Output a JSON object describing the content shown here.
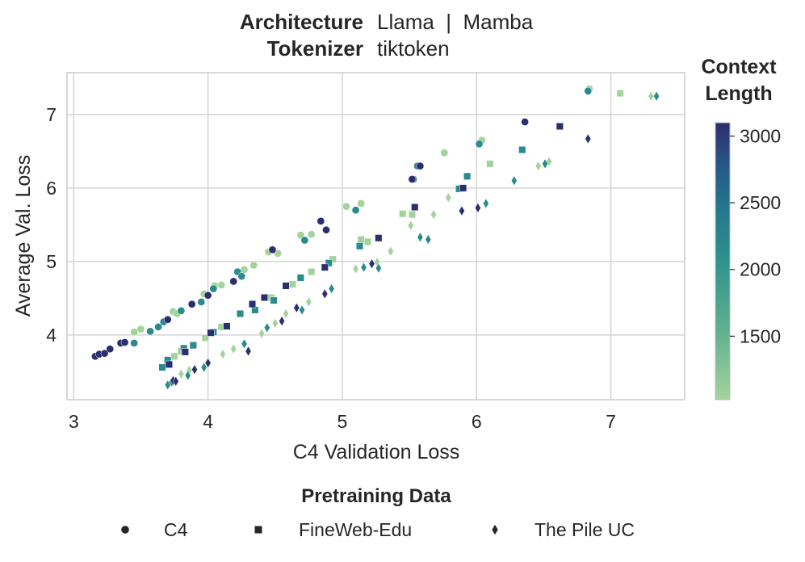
{
  "header": {
    "architecture_label": "Architecture",
    "architecture_value": "Llama  |  Mamba",
    "tokenizer_label": "Tokenizer",
    "tokenizer_value": "tiktoken"
  },
  "colorbar": {
    "title_line1": "Context",
    "title_line2": "Length",
    "range": [
      1024,
      3100
    ],
    "ticks": [
      "1500",
      "2000",
      "2500",
      "3000"
    ],
    "tick_values": [
      1500,
      2000,
      2500,
      3000
    ],
    "colors": {
      "low": "#a3d39c",
      "mid": "#2a8a8c",
      "high": "#2c2f6e"
    }
  },
  "legend": {
    "title": "Pretraining Data",
    "items": [
      {
        "label": "C4",
        "marker": "circle"
      },
      {
        "label": "FineWeb-Edu",
        "marker": "square"
      },
      {
        "label": "The Pile UC",
        "marker": "diamond"
      }
    ]
  },
  "chart_data": {
    "type": "scatter",
    "xlabel": "C4 Validation Loss",
    "ylabel": "Average Val. Loss",
    "xlim": [
      2.95,
      7.55
    ],
    "ylim": [
      3.12,
      7.57
    ],
    "xticks": [
      3,
      4,
      5,
      6,
      7
    ],
    "yticks": [
      4,
      5,
      6,
      7
    ],
    "grid": true,
    "color_by": "Context Length",
    "series": [
      {
        "name": "C4",
        "marker": "circle",
        "points": [
          [
            3.16,
            3.71,
            3072
          ],
          [
            3.19,
            3.74,
            3072
          ],
          [
            3.23,
            3.75,
            3072
          ],
          [
            3.27,
            3.81,
            3072
          ],
          [
            3.35,
            3.89,
            3072
          ],
          [
            3.38,
            3.9,
            3072
          ],
          [
            3.7,
            4.21,
            3072
          ],
          [
            3.88,
            4.42,
            3072
          ],
          [
            4.0,
            4.54,
            3072
          ],
          [
            4.19,
            4.73,
            3072
          ],
          [
            4.48,
            5.16,
            3072
          ],
          [
            4.84,
            5.55,
            3072
          ],
          [
            4.88,
            5.43,
            3072
          ],
          [
            5.52,
            6.12,
            3072
          ],
          [
            5.58,
            6.3,
            3072
          ],
          [
            6.36,
            6.9,
            3072
          ],
          [
            3.45,
            3.89,
            2048
          ],
          [
            3.57,
            4.05,
            2048
          ],
          [
            3.63,
            4.11,
            2048
          ],
          [
            3.67,
            4.18,
            2048
          ],
          [
            3.8,
            4.33,
            2048
          ],
          [
            3.95,
            4.45,
            2048
          ],
          [
            4.04,
            4.63,
            2048
          ],
          [
            4.22,
            4.86,
            2048
          ],
          [
            4.25,
            4.8,
            2048
          ],
          [
            4.72,
            5.29,
            2048
          ],
          [
            5.1,
            5.7,
            2048
          ],
          [
            5.53,
            6.12,
            2048
          ],
          [
            5.56,
            6.3,
            2048
          ],
          [
            6.02,
            6.6,
            2048
          ],
          [
            6.83,
            7.32,
            2048
          ],
          [
            3.45,
            4.04,
            1024
          ],
          [
            3.5,
            4.08,
            1024
          ],
          [
            3.74,
            4.32,
            1024
          ],
          [
            3.77,
            4.29,
            1024
          ],
          [
            3.97,
            4.56,
            1024
          ],
          [
            4.05,
            4.67,
            1024
          ],
          [
            4.1,
            4.68,
            1024
          ],
          [
            4.27,
            4.89,
            1024
          ],
          [
            4.34,
            4.95,
            1024
          ],
          [
            4.45,
            5.13,
            1024
          ],
          [
            4.52,
            5.11,
            1024
          ],
          [
            4.69,
            5.36,
            1024
          ],
          [
            4.77,
            5.37,
            1024
          ],
          [
            5.03,
            5.75,
            1024
          ],
          [
            5.14,
            5.79,
            1024
          ],
          [
            5.76,
            6.48,
            1024
          ],
          [
            6.04,
            6.65,
            1024
          ],
          [
            6.84,
            7.35,
            1024
          ]
        ]
      },
      {
        "name": "FineWeb-Edu",
        "marker": "square",
        "points": [
          [
            3.71,
            3.6,
            3072
          ],
          [
            3.83,
            3.77,
            3072
          ],
          [
            4.02,
            4.03,
            3072
          ],
          [
            4.14,
            4.12,
            3072
          ],
          [
            4.33,
            4.42,
            3072
          ],
          [
            4.42,
            4.51,
            3072
          ],
          [
            4.58,
            4.67,
            3072
          ],
          [
            4.87,
            4.92,
            3072
          ],
          [
            5.27,
            5.32,
            3072
          ],
          [
            5.54,
            5.74,
            3072
          ],
          [
            5.9,
            6.0,
            3072
          ],
          [
            6.62,
            6.84,
            3072
          ],
          [
            3.66,
            3.56,
            2048
          ],
          [
            3.7,
            3.66,
            2048
          ],
          [
            3.82,
            3.82,
            2048
          ],
          [
            3.89,
            3.86,
            2048
          ],
          [
            4.04,
            4.04,
            2048
          ],
          [
            4.24,
            4.29,
            2048
          ],
          [
            4.35,
            4.34,
            2048
          ],
          [
            4.49,
            4.47,
            2048
          ],
          [
            4.69,
            4.78,
            2048
          ],
          [
            4.9,
            4.98,
            2048
          ],
          [
            5.13,
            5.21,
            2048
          ],
          [
            5.87,
            5.99,
            2048
          ],
          [
            5.93,
            6.16,
            2048
          ],
          [
            6.34,
            6.52,
            2048
          ],
          [
            3.75,
            3.71,
            1024
          ],
          [
            3.8,
            3.78,
            1024
          ],
          [
            3.98,
            3.96,
            1024
          ],
          [
            4.1,
            4.11,
            1024
          ],
          [
            4.33,
            4.43,
            1024
          ],
          [
            4.47,
            4.51,
            1024
          ],
          [
            4.63,
            4.69,
            1024
          ],
          [
            4.77,
            4.86,
            1024
          ],
          [
            4.93,
            5.03,
            1024
          ],
          [
            5.14,
            5.3,
            1024
          ],
          [
            5.19,
            5.27,
            1024
          ],
          [
            5.45,
            5.65,
            1024
          ],
          [
            5.52,
            5.64,
            1024
          ],
          [
            6.1,
            6.33,
            1024
          ],
          [
            7.07,
            7.29,
            1024
          ]
        ]
      },
      {
        "name": "The Pile UC",
        "marker": "diamond",
        "points": [
          [
            3.74,
            3.38,
            3072
          ],
          [
            3.76,
            3.37,
            3072
          ],
          [
            3.9,
            3.53,
            3072
          ],
          [
            4.0,
            3.62,
            3072
          ],
          [
            4.3,
            3.78,
            3072
          ],
          [
            4.55,
            4.19,
            3072
          ],
          [
            4.66,
            4.37,
            3072
          ],
          [
            4.87,
            4.56,
            3072
          ],
          [
            5.22,
            4.97,
            3072
          ],
          [
            5.89,
            5.69,
            3072
          ],
          [
            6.01,
            5.73,
            3072
          ],
          [
            6.83,
            6.67,
            3072
          ],
          [
            3.7,
            3.32,
            2048
          ],
          [
            3.73,
            3.36,
            2048
          ],
          [
            3.85,
            3.45,
            2048
          ],
          [
            3.97,
            3.56,
            2048
          ],
          [
            4.27,
            3.88,
            2048
          ],
          [
            4.44,
            4.1,
            2048
          ],
          [
            4.7,
            4.34,
            2048
          ],
          [
            4.92,
            4.63,
            2048
          ],
          [
            5.16,
            4.92,
            2048
          ],
          [
            5.27,
            4.91,
            2048
          ],
          [
            5.58,
            5.33,
            2048
          ],
          [
            5.64,
            5.3,
            2048
          ],
          [
            6.07,
            5.79,
            2048
          ],
          [
            6.28,
            6.1,
            2048
          ],
          [
            6.51,
            6.33,
            2048
          ],
          [
            7.34,
            7.25,
            2048
          ],
          [
            3.8,
            3.47,
            1024
          ],
          [
            3.86,
            3.52,
            1024
          ],
          [
            4.11,
            3.74,
            1024
          ],
          [
            4.19,
            3.81,
            1024
          ],
          [
            4.4,
            4.02,
            1024
          ],
          [
            4.5,
            4.16,
            1024
          ],
          [
            4.58,
            4.29,
            1024
          ],
          [
            4.75,
            4.45,
            1024
          ],
          [
            5.1,
            4.9,
            1024
          ],
          [
            5.26,
            4.99,
            1024
          ],
          [
            5.36,
            5.14,
            1024
          ],
          [
            5.51,
            5.49,
            1024
          ],
          [
            5.68,
            5.64,
            1024
          ],
          [
            5.79,
            5.87,
            1024
          ],
          [
            6.46,
            6.3,
            1024
          ],
          [
            6.54,
            6.36,
            1024
          ],
          [
            7.3,
            7.25,
            1024
          ]
        ]
      }
    ]
  }
}
